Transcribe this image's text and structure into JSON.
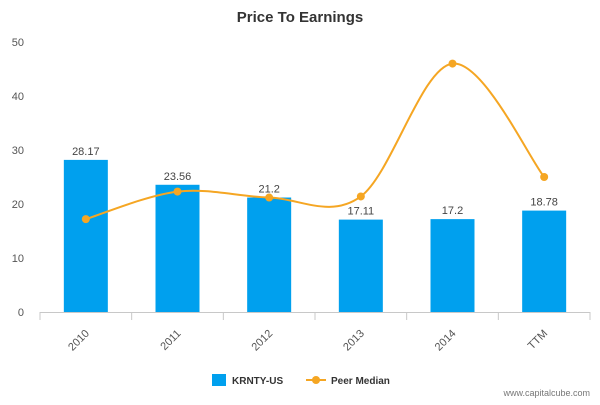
{
  "chart_data": {
    "type": "bar",
    "title": "Price To Earnings",
    "categories": [
      "2010",
      "2011",
      "2012",
      "2013",
      "2014",
      "TTM"
    ],
    "ylim": [
      0,
      50
    ],
    "yticks": [
      "0",
      "10",
      "20",
      "30",
      "40",
      "50"
    ],
    "grid": false,
    "legend_position": "bottom-center",
    "series": [
      {
        "name": "KRNTY-US",
        "type": "bar",
        "values": [
          28.17,
          23.56,
          21.2,
          17.11,
          17.2,
          18.78
        ],
        "labels": [
          "28.17",
          "23.56",
          "21.2",
          "17.11",
          "17.2",
          "18.78"
        ],
        "color": "#00a0ee"
      },
      {
        "name": "Peer Median",
        "type": "line",
        "smooth": true,
        "values": [
          17.2,
          22.3,
          21.2,
          21.4,
          46,
          25
        ],
        "color": "#f5a623"
      }
    ]
  },
  "watermark": "www.capitalcube.com"
}
